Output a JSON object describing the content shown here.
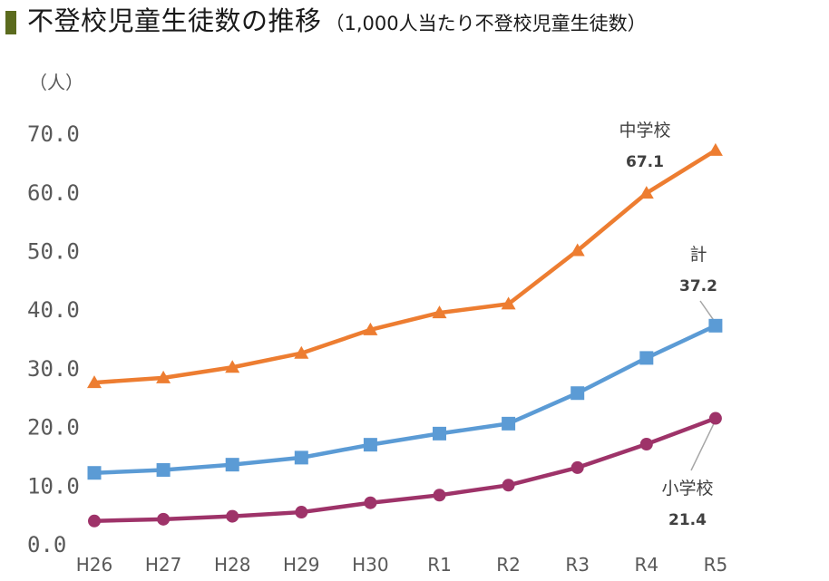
{
  "header": {
    "title_main": "不登校児童生徒数の推移",
    "title_sub": "（1,000人当たり不登校児童生徒数）"
  },
  "chart_data": {
    "type": "line",
    "title": "不登校児童生徒数の推移（1,000人当たり不登校児童生徒数）",
    "ylabel": "（人）",
    "xlabel": "",
    "ylim": [
      0,
      70
    ],
    "grid": false,
    "y_ticks": [
      "0.0",
      "10.0",
      "20.0",
      "30.0",
      "40.0",
      "50.0",
      "60.0",
      "70.0"
    ],
    "categories": [
      "H26",
      "H27",
      "H28",
      "H29",
      "H30",
      "R1",
      "R2",
      "R3",
      "R4",
      "R5"
    ],
    "series": [
      {
        "name": "中学校",
        "color": "#ed7d31",
        "marker": "triangle",
        "values": [
          27.5,
          28.3,
          30.1,
          32.5,
          36.5,
          39.4,
          40.9,
          50.0,
          59.8,
          67.1
        ],
        "label_value": "67.1"
      },
      {
        "name": "計",
        "color": "#5b9bd5",
        "marker": "square",
        "values": [
          12.1,
          12.6,
          13.5,
          14.7,
          16.9,
          18.8,
          20.5,
          25.7,
          31.7,
          37.2
        ],
        "label_value": "37.2"
      },
      {
        "name": "小学校",
        "color": "#9e3369",
        "marker": "circle",
        "values": [
          3.9,
          4.2,
          4.7,
          5.4,
          7.0,
          8.3,
          10.0,
          13.0,
          17.0,
          21.4
        ],
        "label_value": "21.4"
      }
    ]
  }
}
